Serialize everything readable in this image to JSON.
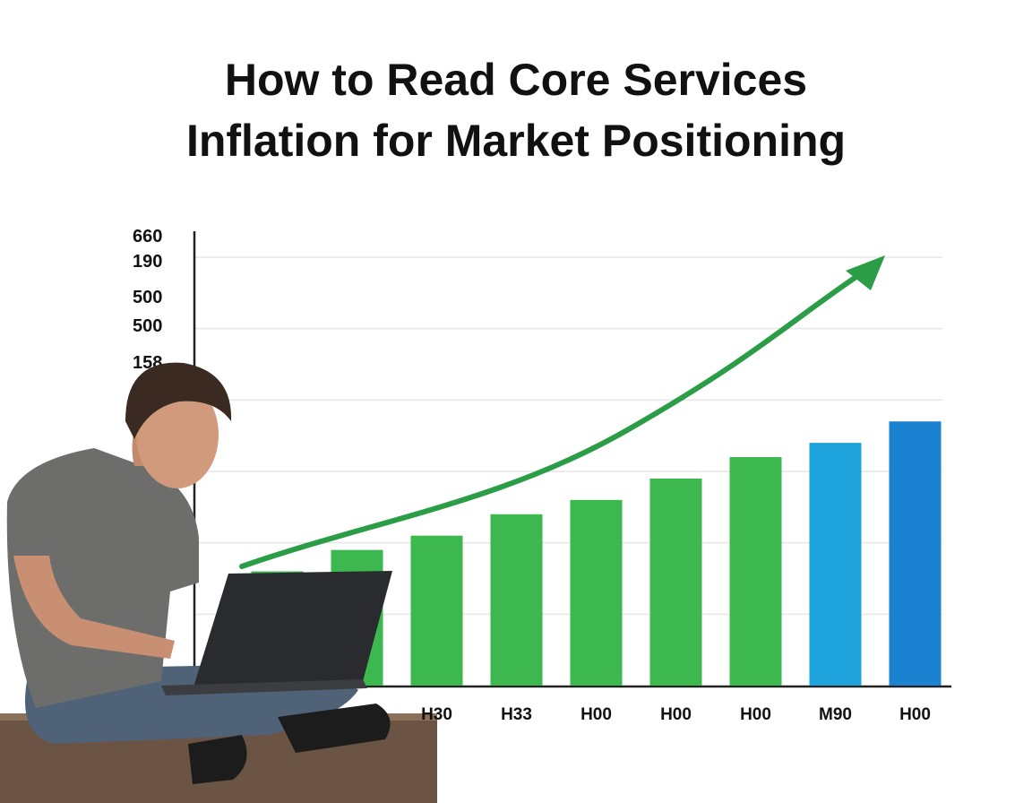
{
  "chart_data": {
    "type": "bar",
    "title_lines": [
      "How to Read Core Services",
      "Inflation for Market Positioning"
    ],
    "y_labels": [
      "660",
      "190",
      "500",
      "500",
      "158"
    ],
    "categories": [
      null,
      null,
      "H30",
      "H33",
      "H00",
      "H00",
      "H00",
      "M90",
      "H00"
    ],
    "values": [
      1.6,
      1.9,
      2.1,
      2.4,
      2.6,
      2.9,
      3.2,
      3.4,
      3.7
    ],
    "colors": [
      "#3cb84e",
      "#3cb84e",
      "#3cb84e",
      "#3cb84e",
      "#3cb84e",
      "#3cb84e",
      "#3cb84e",
      "#1ea2dc",
      "#1b82d2"
    ],
    "ylim": [
      0,
      6
    ],
    "yticks": [
      1,
      2,
      3,
      4,
      5,
      6
    ],
    "grid": true
  }
}
